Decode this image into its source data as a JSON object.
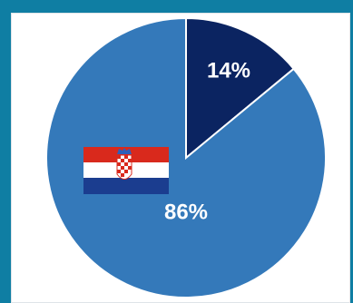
{
  "chart_data": {
    "type": "pie",
    "categories": [
      "",
      ""
    ],
    "values": [
      14,
      86
    ],
    "labels": [
      "14%",
      "86%"
    ],
    "colors": [
      "#0b2461",
      "#3479ba"
    ],
    "title": "",
    "legend": "none"
  },
  "icons": {
    "flag": "croatia-flag-icon",
    "flag_colors": [
      "#d9291c",
      "#ffffff",
      "#1b3d8f"
    ]
  }
}
